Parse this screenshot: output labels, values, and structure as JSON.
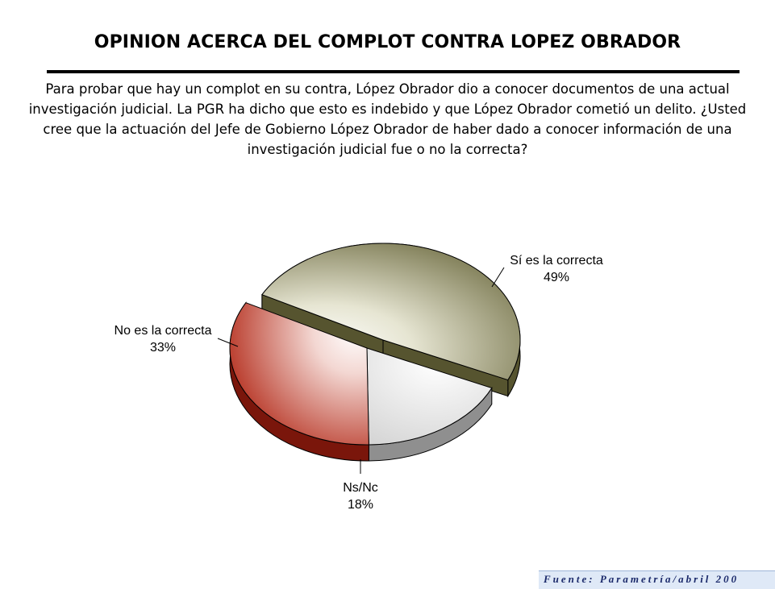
{
  "title": "OPINION ACERCA DEL COMPLOT CONTRA LOPEZ OBRADOR",
  "question": "Para probar que hay un complot en su contra, López Obrador dio a conocer documentos de una actual investigación judicial. La PGR ha dicho que esto es indebido y que López Obrador cometió un delito. ¿Usted cree que la actuación del Jefe de Gobierno López Obrador de haber dado a conocer información de una investigación judicial fue o no la correcta?",
  "source": "Fuente: Parametría/abril 200",
  "chart_data": {
    "type": "pie",
    "title": "",
    "slices": [
      {
        "label": "Sí es la correcta",
        "value": 49,
        "value_label": "49%",
        "color": "#8c8a5e",
        "exploded": true
      },
      {
        "label": "Ns/Nc",
        "value": 18,
        "value_label": "18%",
        "color": "#c9c9c9",
        "exploded": false
      },
      {
        "label": "No es la correcta",
        "value": 33,
        "value_label": "33%",
        "color": "#b22a18",
        "exploded": false
      }
    ]
  }
}
